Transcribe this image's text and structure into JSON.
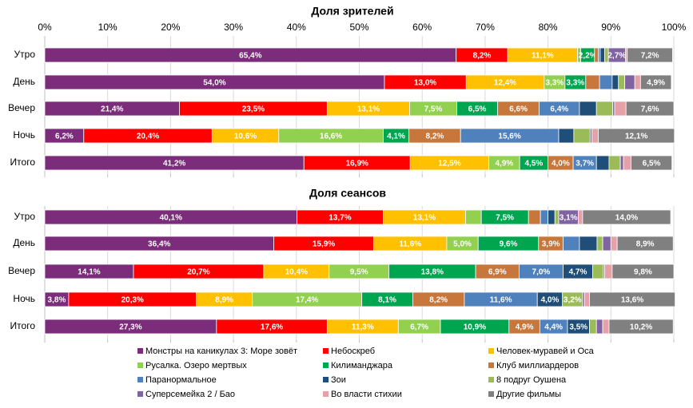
{
  "chart_data": [
    {
      "type": "stacked-bar-h",
      "title": "Доля зрителей",
      "categories": [
        "Утро",
        "День",
        "Вечер",
        "Ночь",
        "Итого"
      ],
      "xlim": [
        0,
        100
      ],
      "xticks": [
        {
          "value": 0,
          "label": "0%"
        },
        {
          "value": 10,
          "label": "10%"
        },
        {
          "value": 20,
          "label": "20%"
        },
        {
          "value": 30,
          "label": "30%"
        },
        {
          "value": 40,
          "label": "40%"
        },
        {
          "value": 50,
          "label": "50%"
        },
        {
          "value": 60,
          "label": "60%"
        },
        {
          "value": 70,
          "label": "70%"
        },
        {
          "value": 80,
          "label": "80%"
        },
        {
          "value": 90,
          "label": "90%"
        },
        {
          "value": 100,
          "label": "100%"
        }
      ],
      "grid": true,
      "series": [
        {
          "name": "Монстры на каникулах 3: Море зовёт",
          "color": "#7b2c7b",
          "values": [
            65.4,
            54.0,
            21.4,
            6.2,
            41.2
          ],
          "value_labels": [
            "65,4%",
            "54,0%",
            "21,4%",
            "6,2%",
            "41,2%"
          ]
        },
        {
          "name": "Небоскреб",
          "color": "#ff0000",
          "values": [
            8.2,
            13.0,
            23.5,
            20.4,
            16.9
          ],
          "value_labels": [
            "8,2%",
            "13,0%",
            "23,5%",
            "20,4%",
            "16,9%"
          ]
        },
        {
          "name": "Человек-муравей и Оса",
          "color": "#ffc000",
          "values": [
            11.1,
            12.4,
            13.1,
            10.6,
            12.5
          ],
          "value_labels": [
            "11,1%",
            "12,4%",
            "13,1%",
            "10,6%",
            "12,5%"
          ]
        },
        {
          "name": "Русалка. Озеро мертвых",
          "color": "#92d050",
          "values": [
            0.5,
            3.3,
            7.5,
            16.6,
            4.9
          ],
          "value_labels": [
            null,
            "3,3%",
            "7,5%",
            "16,6%",
            "4,9%"
          ]
        },
        {
          "name": "Килиманджара",
          "color": "#00a550",
          "values": [
            2.2,
            3.3,
            6.5,
            4.1,
            4.5
          ],
          "value_labels": [
            "2,2%",
            "3,3%",
            "6,5%",
            "4,1%",
            "4,5%"
          ]
        },
        {
          "name": "Клуб миллиардеров",
          "color": "#c8773c",
          "values": [
            0.6,
            2.2,
            6.6,
            8.2,
            4.0
          ],
          "value_labels": [
            null,
            null,
            "6,6%",
            "8,2%",
            "4,0%"
          ]
        },
        {
          "name": "Паранормальное",
          "color": "#4f81bd",
          "values": [
            0.3,
            2.0,
            6.4,
            15.6,
            3.7
          ],
          "value_labels": [
            null,
            null,
            "6,4%",
            "15,6%",
            "3,7%"
          ]
        },
        {
          "name": "Зои",
          "color": "#1f4e79",
          "values": [
            0.7,
            1.0,
            2.7,
            2.4,
            2.0
          ],
          "value_labels": [
            null,
            null,
            null,
            null,
            null
          ]
        },
        {
          "name": "8 подруг Оушена",
          "color": "#9bbb59",
          "values": [
            0.6,
            1.0,
            2.6,
            2.6,
            1.8
          ],
          "value_labels": [
            null,
            null,
            null,
            null,
            null
          ]
        },
        {
          "name": "Суперсемейка 2 / Бао",
          "color": "#8064a2",
          "values": [
            2.7,
            1.6,
            0.3,
            0.3,
            0.5
          ],
          "value_labels": [
            "2,7%",
            null,
            null,
            null,
            null
          ]
        },
        {
          "name": "Во власти стихии",
          "color": "#e6a0a8",
          "values": [
            0.3,
            0.9,
            1.8,
            1.0,
            1.2
          ],
          "value_labels": [
            null,
            null,
            null,
            null,
            null
          ]
        },
        {
          "name": "Другие фильмы",
          "color": "#808080",
          "values": [
            7.2,
            4.9,
            7.6,
            12.1,
            6.5
          ],
          "value_labels": [
            "7,2%",
            "4,9%",
            "7,6%",
            "12,1%",
            "6,5%"
          ]
        }
      ]
    },
    {
      "type": "stacked-bar-h",
      "title": "Доля сеансов",
      "categories": [
        "Утро",
        "День",
        "Вечер",
        "Ночь",
        "Итого"
      ],
      "xlim": [
        0,
        100
      ],
      "series": [
        {
          "values": [
            40.1,
            36.4,
            14.1,
            3.8,
            27.3
          ],
          "value_labels": [
            "40,1%",
            "36,4%",
            "14,1%",
            "3,8%",
            "27,3%"
          ]
        },
        {
          "values": [
            13.7,
            15.9,
            20.7,
            20.3,
            17.6
          ],
          "value_labels": [
            "13,7%",
            "15,9%",
            "20,7%",
            "20,3%",
            "17,6%"
          ]
        },
        {
          "values": [
            13.1,
            11.6,
            10.4,
            8.9,
            11.3
          ],
          "value_labels": [
            "13,1%",
            "11,6%",
            "10,4%",
            "8,9%",
            "11,3%"
          ]
        },
        {
          "values": [
            2.5,
            5.0,
            9.5,
            17.4,
            6.7
          ],
          "value_labels": [
            null,
            "5,0%",
            "9,5%",
            "17,4%",
            "6,7%"
          ]
        },
        {
          "values": [
            7.5,
            9.6,
            13.8,
            8.1,
            10.9
          ],
          "value_labels": [
            "7,5%",
            "9,6%",
            "13,8%",
            "8,1%",
            "10,9%"
          ]
        },
        {
          "values": [
            1.9,
            3.9,
            6.9,
            8.2,
            4.9
          ],
          "value_labels": [
            null,
            "3,9%",
            "6,9%",
            "8,2%",
            "4,9%"
          ]
        },
        {
          "values": [
            1.2,
            2.6,
            7.0,
            11.6,
            4.4
          ],
          "value_labels": [
            null,
            null,
            "7,0%",
            "11,6%",
            "4,4%"
          ]
        },
        {
          "values": [
            1.1,
            2.8,
            4.7,
            4.0,
            3.5
          ],
          "value_labels": [
            null,
            null,
            "4,7%",
            "4,0%",
            "3,5%"
          ]
        },
        {
          "values": [
            0.6,
            0.9,
            1.7,
            3.2,
            1.1
          ],
          "value_labels": [
            null,
            null,
            null,
            "3,2%",
            null
          ]
        },
        {
          "values": [
            3.1,
            1.3,
            0.2,
            0.3,
            1.0
          ],
          "value_labels": [
            "3,1%",
            null,
            null,
            null,
            null
          ]
        },
        {
          "values": [
            0.7,
            1.0,
            1.2,
            0.8,
            1.0
          ],
          "value_labels": [
            null,
            null,
            null,
            null,
            null
          ]
        },
        {
          "values": [
            14.0,
            8.9,
            9.8,
            13.6,
            10.2
          ],
          "value_labels": [
            "14,0%",
            "8,9%",
            "9,8%",
            "13,6%",
            "10,2%"
          ]
        }
      ]
    }
  ]
}
